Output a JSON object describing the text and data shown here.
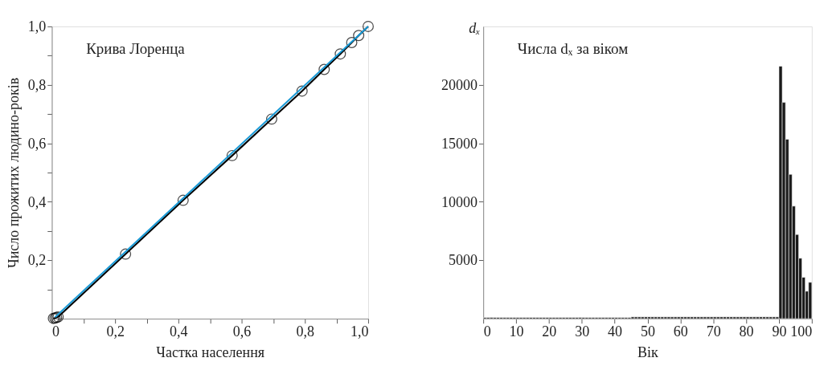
{
  "chart_data": [
    {
      "type": "line",
      "title": "Крива Лоренца",
      "xlabel": "Частка населення",
      "ylabel": "Число прожитих людино-років",
      "xlim": [
        0,
        1.0
      ],
      "ylim": [
        0,
        1.0
      ],
      "xticks": [
        0,
        {
          "value": 0.1,
          "label": null
        },
        {
          "value": 0.2,
          "label": "0,2"
        },
        {
          "value": 0.3,
          "label": null
        },
        {
          "value": 0.4,
          "label": "0,4"
        },
        {
          "value": 0.5,
          "label": null
        },
        {
          "value": 0.6,
          "label": "0,6"
        },
        {
          "value": 0.7,
          "label": null
        },
        {
          "value": 0.8,
          "label": "0,8"
        },
        {
          "value": 0.9,
          "label": null
        },
        {
          "value": 1.0,
          "label": "1,0"
        }
      ],
      "yticks": [
        {
          "value": 0.1,
          "label": null
        },
        {
          "value": 0.2,
          "label": "0,2"
        },
        {
          "value": 0.3,
          "label": null
        },
        {
          "value": 0.4,
          "label": "0,4"
        },
        {
          "value": 0.5,
          "label": null
        },
        {
          "value": 0.6,
          "label": "0,6"
        },
        {
          "value": 0.7,
          "label": null
        },
        {
          "value": 0.8,
          "label": "0,8"
        },
        {
          "value": 0.9,
          "label": null
        },
        {
          "value": 1.0,
          "label": "1,0"
        }
      ],
      "grid": false,
      "series": [
        {
          "color": "#000000",
          "marker": "circle",
          "x": [
            0.005,
            0.01,
            0.015,
            0.02,
            0.233,
            0.415,
            0.57,
            0.695,
            0.791,
            0.861,
            0.912,
            0.948,
            0.97,
            1.0
          ],
          "values": [
            0.001,
            0.002,
            0.004,
            0.006,
            0.221,
            0.405,
            0.558,
            0.683,
            0.779,
            0.853,
            0.906,
            0.945,
            0.969,
            1.0
          ]
        },
        {
          "color": "#1a9ad6",
          "marker": "none",
          "x": [
            0.01,
            1.0
          ],
          "values": [
            0.005,
            1.0
          ]
        }
      ]
    },
    {
      "type": "histogram",
      "title": "Числа dₓ за віком",
      "xlabel": "Вік",
      "ylabel": "dₓ",
      "xlim": [
        0,
        100
      ],
      "ylim": [
        0,
        25000
      ],
      "xticks": [
        0,
        10,
        20,
        30,
        40,
        50,
        60,
        70,
        80,
        90,
        100
      ],
      "yticks": [
        5000,
        10000,
        15000,
        20000
      ],
      "grid": false,
      "color": "#1a1a1a",
      "bins": [
        0,
        1,
        2,
        3,
        4,
        5,
        6,
        7,
        8,
        9,
        10,
        11,
        12,
        13,
        14,
        15,
        16,
        17,
        18,
        19,
        20,
        21,
        22,
        23,
        24,
        25,
        26,
        27,
        28,
        29,
        30,
        31,
        32,
        33,
        34,
        35,
        36,
        37,
        38,
        39,
        40,
        41,
        42,
        43,
        44,
        45,
        46,
        47,
        48,
        49,
        50,
        51,
        52,
        53,
        54,
        55,
        56,
        57,
        58,
        59,
        60,
        61,
        62,
        63,
        64,
        65,
        66,
        67,
        68,
        69,
        70,
        71,
        72,
        73,
        74,
        75,
        76,
        77,
        78,
        79,
        80,
        81,
        82,
        83,
        84,
        85,
        86,
        87,
        88,
        89,
        90,
        91,
        92,
        93,
        94,
        95,
        96,
        97,
        98,
        99,
        100
      ],
      "values": [
        100,
        100,
        100,
        100,
        100,
        100,
        100,
        100,
        100,
        100,
        100,
        100,
        100,
        100,
        100,
        100,
        100,
        100,
        100,
        100,
        100,
        100,
        100,
        100,
        100,
        100,
        100,
        100,
        100,
        100,
        100,
        100,
        100,
        100,
        100,
        100,
        100,
        100,
        100,
        100,
        100,
        100,
        100,
        100,
        100,
        150,
        150,
        150,
        150,
        150,
        150,
        150,
        150,
        150,
        150,
        150,
        150,
        150,
        150,
        150,
        150,
        150,
        150,
        150,
        150,
        150,
        150,
        150,
        150,
        150,
        150,
        150,
        150,
        150,
        150,
        150,
        150,
        150,
        150,
        150,
        150,
        150,
        150,
        150,
        150,
        150,
        150,
        150,
        150,
        150,
        21600,
        18500,
        15350,
        12350,
        9630,
        7200,
        5170,
        3540,
        2350,
        3110
      ]
    }
  ]
}
